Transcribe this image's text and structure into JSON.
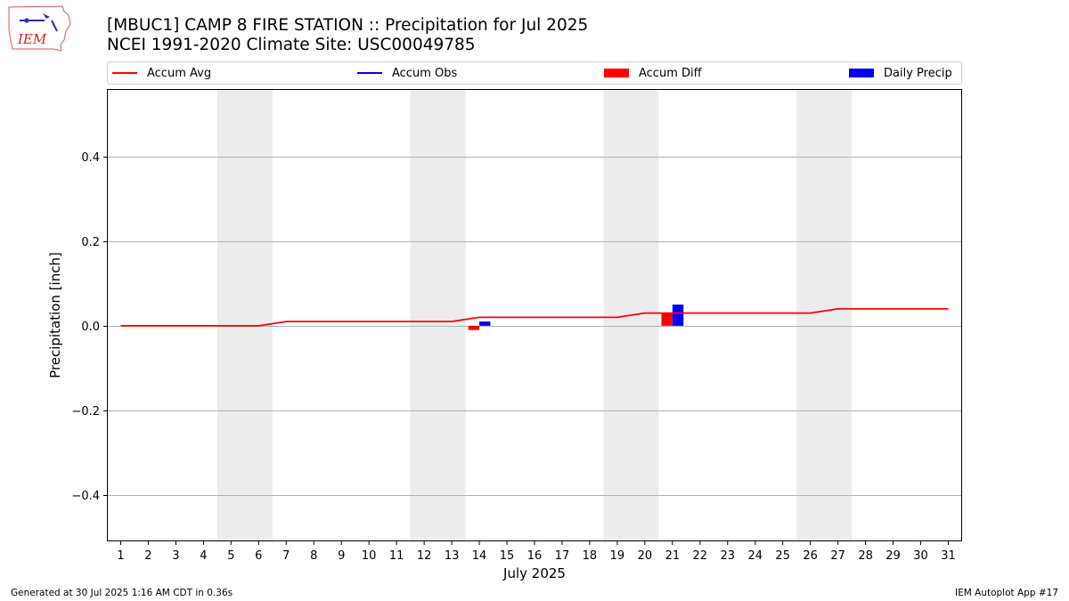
{
  "header": {
    "logo_text": "IEM",
    "title_line1": "[MBUC1] CAMP 8 FIRE STATION :: Precipitation for Jul 2025",
    "title_line2": "NCEI 1991-2020 Climate Site: USC00049785"
  },
  "legend": {
    "items": [
      {
        "label": "Accum Avg",
        "kind": "line",
        "color": "#ff0000"
      },
      {
        "label": "Accum Obs",
        "kind": "line",
        "color": "#0000ff"
      },
      {
        "label": "Accum Diff",
        "kind": "bar",
        "color": "#ff0000"
      },
      {
        "label": "Daily Precip",
        "kind": "bar",
        "color": "#0000ff"
      }
    ]
  },
  "chart_data": {
    "type": "line",
    "xlabel": "July 2025",
    "ylabel": "Precipitation [inch]",
    "x": [
      1,
      2,
      3,
      4,
      5,
      6,
      7,
      8,
      9,
      10,
      11,
      12,
      13,
      14,
      15,
      16,
      17,
      18,
      19,
      20,
      21,
      22,
      23,
      24,
      25,
      26,
      27,
      28,
      29,
      30,
      31
    ],
    "xlim": [
      0.5,
      31.5
    ],
    "ylim": [
      -0.51,
      0.56
    ],
    "yticks": [
      -0.4,
      -0.2,
      0.0,
      0.2,
      0.4
    ],
    "ytick_labels": [
      "−0.4",
      "−0.2",
      "0.0",
      "0.2",
      "0.4"
    ],
    "grid": "horizontal",
    "weekend_shading": [
      [
        4.5,
        6.5
      ],
      [
        11.5,
        13.5
      ],
      [
        18.5,
        20.5
      ],
      [
        25.5,
        27.5
      ]
    ],
    "series": [
      {
        "name": "Accum Avg",
        "type": "line",
        "color": "#ff0000",
        "values": [
          0,
          0,
          0,
          0,
          0,
          0,
          0.01,
          0.01,
          0.01,
          0.01,
          0.01,
          0.01,
          0.01,
          0.02,
          0.02,
          0.02,
          0.02,
          0.02,
          0.02,
          0.03,
          0.03,
          0.03,
          0.03,
          0.03,
          0.03,
          0.03,
          0.04,
          0.04,
          0.04,
          0.04,
          0.04
        ]
      },
      {
        "name": "Accum Diff",
        "type": "bar",
        "color": "#ff0000",
        "bars": [
          {
            "x": 14,
            "value": -0.01
          },
          {
            "x": 21,
            "value": 0.03
          }
        ]
      },
      {
        "name": "Daily Precip",
        "type": "bar",
        "color": "#0000ff",
        "bars": [
          {
            "x": 14,
            "value": 0.01
          },
          {
            "x": 21,
            "value": 0.05
          }
        ]
      }
    ]
  },
  "footer": {
    "left": "Generated at 30 Jul 2025 1:16 AM CDT in 0.36s",
    "right": "IEM Autoplot App #17"
  }
}
